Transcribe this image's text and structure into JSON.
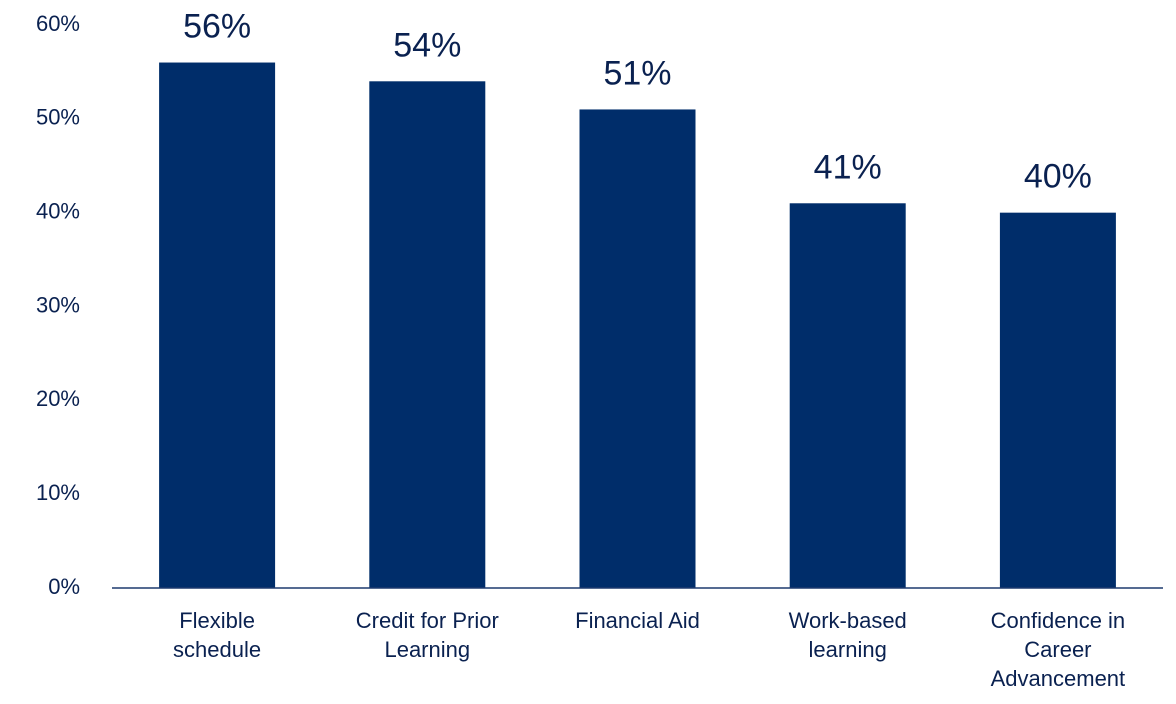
{
  "chart_data": {
    "type": "bar",
    "categories": [
      "Flexible schedule",
      "Credit for Prior Learning",
      "Financial Aid",
      "Work-based learning",
      "Confidence in Career Advancement"
    ],
    "values": [
      56,
      54,
      51,
      41,
      40
    ],
    "value_labels": [
      "56%",
      "54%",
      "51%",
      "41%",
      "40%"
    ],
    "color": "#002d6a",
    "ylim": [
      0,
      60
    ],
    "yticks": [
      {
        "value": 0,
        "label": "0%"
      },
      {
        "value": 10,
        "label": "10%"
      },
      {
        "value": 20,
        "label": "20%"
      },
      {
        "value": 30,
        "label": "30%"
      },
      {
        "value": 40,
        "label": "40%"
      },
      {
        "value": 50,
        "label": "50%"
      },
      {
        "value": 60,
        "label": "60%"
      }
    ],
    "grid": false
  }
}
